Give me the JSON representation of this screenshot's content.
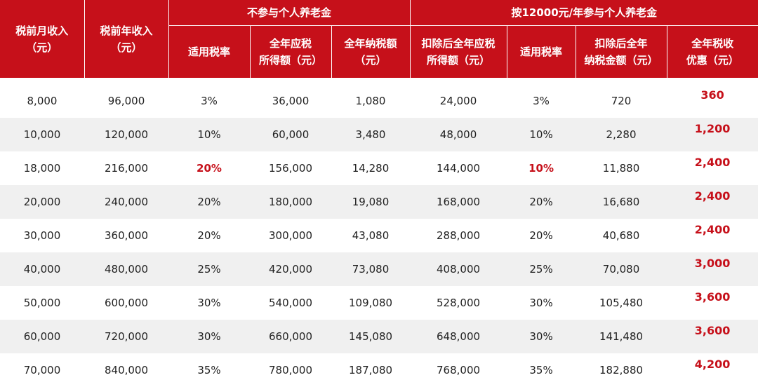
{
  "headers": {
    "monthly_income": [
      "税前月收入",
      "（元）"
    ],
    "annual_income": [
      "税前年收入",
      "（元）"
    ],
    "group_no_pension": "不参与个人养老金",
    "group_with_pension": "按12000元/年参与个人养老金",
    "no_pension_cols": [
      [
        "适用税率"
      ],
      [
        "全年应税",
        "所得额（元）"
      ],
      [
        "全年纳税额",
        "（元）"
      ]
    ],
    "with_pension_cols": [
      [
        "扣除后全年应税",
        "所得额（元）"
      ],
      [
        "适用税率"
      ],
      [
        "扣除后全年",
        "纳税金额（元）"
      ],
      [
        "全年税收",
        "优惠（元）"
      ]
    ]
  },
  "rows": [
    [
      "8,000",
      "96,000",
      "3%",
      "36,000",
      "1,080",
      "24,000",
      "3%",
      "720",
      "360"
    ],
    [
      "10,000",
      "120,000",
      "10%",
      "60,000",
      "3,480",
      "48,000",
      "10%",
      "2,280",
      "1,200"
    ],
    [
      "18,000",
      "216,000",
      "20%",
      "156,000",
      "14,280",
      "144,000",
      "10%",
      "11,880",
      "2,400"
    ],
    [
      "20,000",
      "240,000",
      "20%",
      "180,000",
      "19,080",
      "168,000",
      "20%",
      "16,680",
      "2,400"
    ],
    [
      "30,000",
      "360,000",
      "20%",
      "300,000",
      "43,080",
      "288,000",
      "20%",
      "40,680",
      "2,400"
    ],
    [
      "40,000",
      "480,000",
      "25%",
      "420,000",
      "73,080",
      "408,000",
      "25%",
      "70,080",
      "3,000"
    ],
    [
      "50,000",
      "600,000",
      "30%",
      "540,000",
      "109,080",
      "528,000",
      "30%",
      "105,480",
      "3,600"
    ],
    [
      "60,000",
      "720,000",
      "30%",
      "660,000",
      "145,080",
      "648,000",
      "30%",
      "141,480",
      "3,600"
    ],
    [
      "70,000",
      "840,000",
      "35%",
      "780,000",
      "187,080",
      "768,000",
      "35%",
      "182,880",
      "4,200"
    ]
  ],
  "highlighted_cells": [
    [
      2,
      2
    ],
    [
      2,
      6
    ]
  ],
  "colors": {
    "header_bg": "#c6101a",
    "accent_text": "#c6101a",
    "zebra_row": "#f0f0f0",
    "body_text": "#222222"
  }
}
